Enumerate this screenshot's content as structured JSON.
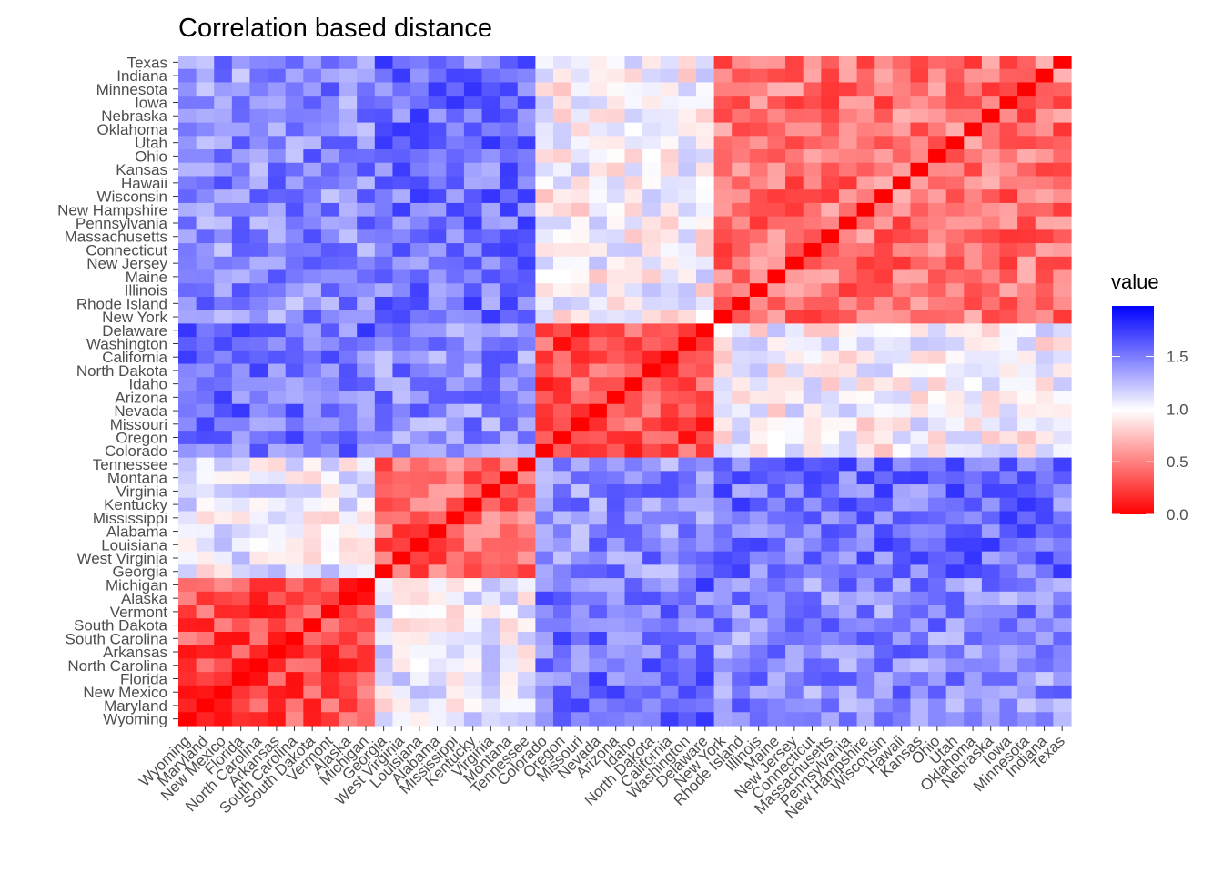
{
  "chart_data": {
    "type": "heatmap",
    "title": "Correlation based distance",
    "xlabel": "",
    "ylabel": "",
    "x_categories": [
      "Wyoming",
      "Maryland",
      "New Mexico",
      "Florida",
      "North Carolina",
      "Arkansas",
      "South Carolina",
      "South Dakota",
      "Vermont",
      "Alaska",
      "Michigan",
      "Georgia",
      "West Virginia",
      "Louisiana",
      "Alabama",
      "Mississippi",
      "Kentucky",
      "Virginia",
      "Montana",
      "Tennessee",
      "Colorado",
      "Oregon",
      "Missouri",
      "Nevada",
      "Arizona",
      "Idaho",
      "North Dakota",
      "California",
      "Washington",
      "Delaware",
      "New York",
      "Rhode Island",
      "Illinois",
      "Maine",
      "New Jersey",
      "Connecticut",
      "Massachusetts",
      "Pennsylvania",
      "New Hampshire",
      "Wisconsin",
      "Hawaii",
      "Kansas",
      "Ohio",
      "Utah",
      "Oklahoma",
      "Nebraska",
      "Iowa",
      "Minnesota",
      "Indiana",
      "Texas"
    ],
    "y_categories_top_to_bottom": [
      "Texas",
      "Indiana",
      "Minnesota",
      "Iowa",
      "Nebraska",
      "Oklahoma",
      "Utah",
      "Ohio",
      "Kansas",
      "Hawaii",
      "Wisconsin",
      "New Hampshire",
      "Pennsylvania",
      "Massachusetts",
      "Connecticut",
      "New Jersey",
      "Maine",
      "Illinois",
      "Rhode Island",
      "New York",
      "Delaware",
      "Washington",
      "California",
      "North Dakota",
      "Idaho",
      "Arizona",
      "Nevada",
      "Missouri",
      "Oregon",
      "Colorado",
      "Tennessee",
      "Montana",
      "Virginia",
      "Kentucky",
      "Mississippi",
      "Alabama",
      "Louisiana",
      "West Virginia",
      "Georgia",
      "Michigan",
      "Alaska",
      "Vermont",
      "South Dakota",
      "South Carolina",
      "Arkansas",
      "North Carolina",
      "Florida",
      "New Mexico",
      "Maryland",
      "Wyoming"
    ],
    "cluster_bounds": [
      0,
      11,
      20,
      30,
      50
    ],
    "cluster_within_base": [
      0.3,
      0.4,
      0.3,
      0.45
    ],
    "cluster_between_base": [
      [
        0.3,
        1.05,
        1.55,
        1.45
      ],
      [
        1.05,
        0.4,
        1.45,
        1.55
      ],
      [
        1.55,
        1.45,
        0.3,
        1.0
      ],
      [
        1.45,
        1.55,
        1.0,
        0.45
      ]
    ],
    "value_range": [
      0,
      2
    ],
    "colorscale": {
      "low": "#ff0000",
      "mid": "#ffffff",
      "high": "#0000ff",
      "midpoint": 1.0
    },
    "legend": {
      "title": "value",
      "breaks": [
        0.0,
        0.5,
        1.0,
        1.5
      ],
      "labels": [
        "0.0",
        "0.5",
        "1.0",
        "1.5"
      ],
      "position": "right"
    },
    "grid": false
  }
}
